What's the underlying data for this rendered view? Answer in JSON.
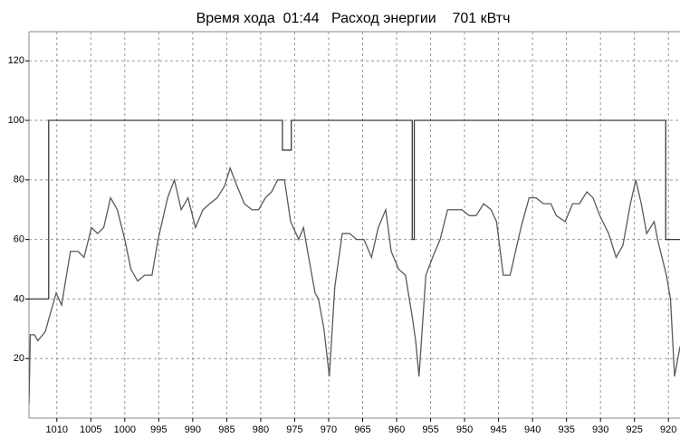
{
  "chart_data": {
    "type": "line",
    "title": "Время хода  01:44   Расход энергии    701 кВтч",
    "xlim": [
      1014.1,
      918.3
    ],
    "ylim": [
      0,
      129.8
    ],
    "xticks": [
      1010,
      1005,
      1000,
      995,
      990,
      985,
      980,
      975,
      970,
      965,
      960,
      955,
      950,
      945,
      940,
      935,
      930,
      925,
      920
    ],
    "yticks": [
      20,
      40,
      60,
      80,
      100,
      120
    ],
    "grid": true,
    "series": [
      {
        "color": "#3c3c3c",
        "x": [
          1014.1,
          1011.2,
          1011.2,
          976.8,
          976.8,
          975.5,
          975.5,
          957.7,
          957.7,
          957.4,
          957.4,
          920.4,
          920.4,
          918.3
        ],
        "values": [
          40,
          40,
          100,
          100,
          90,
          90,
          100,
          100,
          60,
          60,
          100,
          100,
          60,
          60
        ]
      },
      {
        "color": "#5a5a5a",
        "x": [
          1014.1,
          1013.9,
          1013.3,
          1012.8,
          1011.7,
          1011.1,
          1010.1,
          1009.3,
          1008.0,
          1006.9,
          1006.0,
          1004.9,
          1004.0,
          1003.1,
          1002.1,
          1001.1,
          1000.0,
          999.1,
          998.1,
          997.1,
          996.0,
          995.1,
          993.7,
          992.7,
          991.7,
          990.7,
          989.6,
          988.5,
          987.5,
          986.4,
          985.3,
          984.5,
          983.5,
          982.4,
          981.3,
          980.3,
          979.3,
          978.4,
          977.5,
          976.5,
          975.6,
          974.4,
          973.7,
          973.1,
          972.0,
          971.5,
          970.7,
          969.9,
          969.1,
          968.0,
          966.9,
          965.9,
          964.8,
          963.7,
          962.7,
          961.6,
          960.8,
          959.7,
          958.7,
          957.7,
          957.2,
          956.7,
          955.7,
          954.7,
          953.6,
          952.5,
          951.5,
          950.4,
          949.3,
          948.3,
          947.2,
          946.1,
          945.3,
          944.3,
          943.3,
          942.7,
          941.7,
          940.5,
          939.5,
          938.4,
          937.3,
          936.5,
          935.2,
          934.1,
          933.1,
          932.0,
          931.1,
          930.1,
          928.8,
          927.7,
          926.7,
          925.6,
          924.8,
          924.0,
          923.2,
          922.1,
          921.6,
          920.3,
          919.7,
          919.1,
          918.3
        ],
        "values": [
          5,
          28,
          28,
          26,
          29,
          34,
          42,
          38,
          56,
          56,
          54,
          64,
          62,
          64,
          74,
          70,
          60,
          50,
          46,
          48,
          48,
          60,
          74,
          80,
          70,
          74,
          64,
          70,
          72,
          74,
          78,
          84,
          78,
          72,
          70,
          70,
          74,
          76,
          80,
          80,
          66,
          60,
          64,
          56,
          42,
          40,
          30,
          14,
          44,
          62,
          62,
          60,
          60,
          54,
          64,
          70,
          56,
          50,
          48,
          34,
          26,
          14,
          48,
          54,
          60,
          70,
          70,
          70,
          68,
          68,
          72,
          70,
          66,
          48,
          48,
          54,
          64,
          74,
          74,
          72,
          72,
          68,
          66,
          72,
          72,
          76,
          74,
          68,
          62,
          54,
          58,
          72,
          80,
          72,
          62,
          66,
          60,
          48,
          40,
          14,
          24
        ]
      }
    ]
  }
}
